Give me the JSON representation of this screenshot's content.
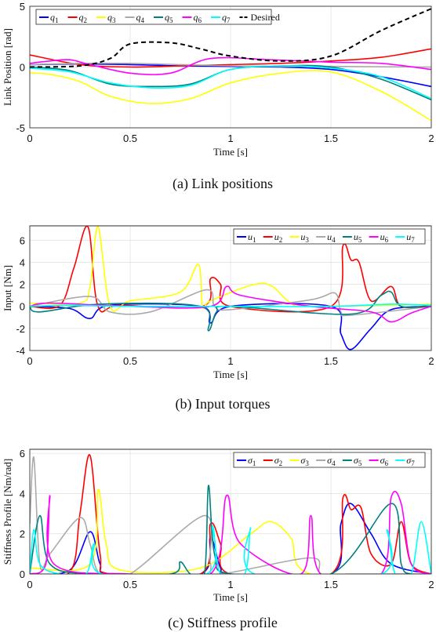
{
  "charts": [
    {
      "type": "line",
      "id": "a",
      "ylabel": "Link Position [rad]",
      "xlabel": "Time [s]",
      "caption": "(a)  Link positions",
      "xlim": [
        0,
        2
      ],
      "ylim": [
        -5,
        5
      ],
      "xticks": [
        "0",
        "0.5",
        "1",
        "1.5",
        "2"
      ],
      "yticks": [
        "5",
        "0",
        "-5"
      ],
      "ytick_values": [
        5,
        0,
        -5
      ],
      "grid": true,
      "legend_position": "top-center",
      "desired_label": "Desired",
      "series": [
        {
          "name": "q1",
          "color": "#0000ff",
          "x": [
            0,
            0.25,
            0.5,
            0.75,
            1,
            1.25,
            1.5,
            1.75,
            2
          ],
          "y": [
            0.2,
            0.25,
            0.2,
            0.1,
            0.05,
            0,
            -0.2,
            -0.8,
            -1.6
          ]
        },
        {
          "name": "q2",
          "color": "#ff0000",
          "x": [
            0,
            0.25,
            0.5,
            0.75,
            1,
            1.25,
            1.5,
            1.75,
            2
          ],
          "y": [
            1.0,
            0.2,
            0.0,
            0.1,
            0.2,
            0.3,
            0.5,
            0.8,
            1.5
          ]
        },
        {
          "name": "q3",
          "color": "#ffff00",
          "x": [
            0,
            0.1,
            0.25,
            0.4,
            0.6,
            0.8,
            1,
            1.25,
            1.5,
            1.75,
            2
          ],
          "y": [
            -0.5,
            -0.6,
            -1.2,
            -2.4,
            -3.0,
            -2.6,
            -1.3,
            -0.5,
            -0.4,
            -2.0,
            -4.4
          ]
        },
        {
          "name": "q4",
          "color": "#aaaaaa",
          "x": [
            0,
            0.25,
            0.5,
            0.75,
            1,
            1.25,
            1.5,
            1.75,
            2
          ],
          "y": [
            0.2,
            0.3,
            0.3,
            0.2,
            0.1,
            0.05,
            0.05,
            0.02,
            0
          ]
        },
        {
          "name": "q5",
          "color": "#008080",
          "x": [
            0,
            0.2,
            0.4,
            0.6,
            0.8,
            1,
            1.25,
            1.5,
            1.75,
            2
          ],
          "y": [
            0,
            -0.3,
            -1.4,
            -1.6,
            -1.4,
            -0.2,
            0.1,
            0,
            -1.0,
            -2.7
          ]
        },
        {
          "name": "q6",
          "color": "#ff00ff",
          "x": [
            0,
            0.1,
            0.2,
            0.3,
            0.5,
            0.7,
            0.9,
            1.2,
            1.5,
            1.75,
            2
          ],
          "y": [
            0.3,
            0.5,
            0.6,
            0.2,
            -0.5,
            -0.5,
            0.7,
            0.6,
            0.4,
            0.3,
            -0.2
          ]
        },
        {
          "name": "q7",
          "color": "#00ffff",
          "x": [
            0,
            0.2,
            0.4,
            0.6,
            0.8,
            1,
            1.25,
            1.5,
            1.75,
            2
          ],
          "y": [
            -0.1,
            -0.4,
            -1.3,
            -1.7,
            -1.5,
            -0.2,
            0.1,
            -0.1,
            -0.8,
            -2.6
          ]
        },
        {
          "name": "Desired",
          "color": "#000000",
          "dashed": true,
          "x": [
            0,
            0.25,
            0.4,
            0.5,
            0.7,
            0.85,
            1,
            1.25,
            1.5,
            1.75,
            2
          ],
          "y": [
            0,
            0.1,
            0.7,
            1.9,
            2.0,
            1.5,
            0.9,
            0.5,
            0.9,
            3.0,
            4.8
          ]
        }
      ]
    },
    {
      "type": "line",
      "id": "b",
      "ylabel": "Input [Nm]",
      "xlabel": "Time [s]",
      "caption": "(b)  Input torques",
      "xlim": [
        0,
        2
      ],
      "ylim": [
        -4,
        7.3
      ],
      "xticks": [
        "0",
        "0.5",
        "1",
        "1.5",
        "2"
      ],
      "yticks": [
        "6",
        "4",
        "2",
        "0",
        "-2",
        "-4"
      ],
      "ytick_values": [
        6,
        4,
        2,
        0,
        -2,
        -4
      ],
      "grid": true,
      "legend_position": "top-right",
      "series": [
        {
          "name": "u1",
          "color": "#0000ff",
          "x": [
            0,
            0.2,
            0.3,
            0.4,
            0.85,
            0.9,
            1.0,
            1.5,
            1.55,
            1.6,
            1.7,
            1.8,
            2
          ],
          "y": [
            0,
            -0.2,
            -1.1,
            0.1,
            0,
            -1.5,
            0,
            0,
            -2.5,
            -3.9,
            -2.0,
            -0.3,
            0
          ]
        },
        {
          "name": "u2",
          "color": "#ff0000",
          "x": [
            0,
            0.15,
            0.22,
            0.29,
            0.34,
            0.45,
            0.86,
            0.9,
            0.95,
            1.0,
            1.5,
            1.56,
            1.6,
            1.64,
            1.7,
            1.8,
            1.85,
            2
          ],
          "y": [
            0,
            0.1,
            3.5,
            7.2,
            0,
            0.1,
            0,
            2.5,
            2.0,
            0,
            0,
            5.5,
            4.2,
            4.0,
            0.5,
            1.8,
            0,
            0.1
          ]
        },
        {
          "name": "u3",
          "color": "#ffff00",
          "x": [
            0,
            0.25,
            0.3,
            0.34,
            0.4,
            0.5,
            0.75,
            0.84,
            0.86,
            0.9,
            1.1,
            1.2,
            1.3,
            1.4,
            2
          ],
          "y": [
            0.3,
            0.3,
            1.8,
            7.2,
            0,
            0.5,
            1.3,
            3.8,
            0,
            0.5,
            1.9,
            1.9,
            0.3,
            0,
            0.2
          ]
        },
        {
          "name": "u4",
          "color": "#aaaaaa",
          "x": [
            0,
            0.3,
            0.4,
            0.6,
            0.88,
            0.92,
            1.0,
            1.4,
            1.52,
            1.55,
            1.6,
            2
          ],
          "y": [
            0,
            0.9,
            -0.5,
            -0.5,
            1.5,
            0,
            -0.3,
            0.6,
            1.2,
            -0.5,
            -0.8,
            0
          ]
        },
        {
          "name": "u5",
          "color": "#008080",
          "x": [
            0,
            0.05,
            0.35,
            0.85,
            0.89,
            0.93,
            1.0,
            1.6,
            1.75,
            1.8,
            1.85,
            2
          ],
          "y": [
            0,
            -0.5,
            0.2,
            0,
            -2.2,
            -0.5,
            0,
            -0.7,
            1.0,
            1.3,
            0,
            0
          ]
        },
        {
          "name": "u6",
          "color": "#ff00ff",
          "x": [
            0,
            0.1,
            0.5,
            0.9,
            0.98,
            1.05,
            1.4,
            1.7,
            1.8,
            1.9,
            2
          ],
          "y": [
            0,
            0.3,
            0,
            0,
            1.8,
            1.0,
            0,
            -0.5,
            -1.4,
            -0.6,
            0
          ]
        },
        {
          "name": "u7",
          "color": "#00ffff",
          "x": [
            0,
            0.2,
            0.5,
            1.0,
            1.5,
            1.8,
            2
          ],
          "y": [
            0,
            0.1,
            0,
            0,
            0,
            0.2,
            0.1
          ]
        }
      ]
    },
    {
      "type": "line",
      "id": "c",
      "ylabel": "Stiffness Profile [Nm/rad]",
      "xlabel": "Time [s]",
      "caption": "(c)  Stiffness profile",
      "xlim": [
        0,
        2
      ],
      "ylim": [
        0,
        6.2
      ],
      "xticks": [
        "0",
        "0.5",
        "1",
        "1.5",
        "2"
      ],
      "yticks": [
        "6",
        "4",
        "2",
        "0"
      ],
      "ytick_values": [
        6,
        4,
        2,
        0
      ],
      "grid": true,
      "legend_position": "top-right",
      "series": [
        {
          "name": "σ1",
          "color": "#0000ff",
          "x": [
            0,
            0.2,
            0.3,
            0.35,
            0.4,
            0.85,
            0.9,
            0.95,
            1.0,
            1.5,
            1.55,
            1.6,
            1.7,
            1.8,
            2
          ],
          "y": [
            0,
            0.2,
            2.1,
            0.5,
            0,
            0,
            1.8,
            0.3,
            0,
            0,
            2.5,
            3.5,
            2.0,
            0.5,
            0
          ]
        },
        {
          "name": "σ2",
          "color": "#ff0000",
          "x": [
            0,
            0.2,
            0.25,
            0.3,
            0.35,
            0.4,
            0.85,
            0.9,
            0.95,
            1.0,
            1.5,
            1.56,
            1.6,
            1.65,
            1.7,
            1.8,
            1.85,
            1.9,
            2
          ],
          "y": [
            0,
            0.1,
            3.0,
            5.9,
            1.0,
            0,
            0,
            2.5,
            1.5,
            0,
            0,
            3.8,
            3.2,
            3.3,
            1.0,
            0.5,
            2.6,
            0.5,
            0
          ]
        },
        {
          "name": "σ3",
          "color": "#ffff00",
          "x": [
            0,
            0.3,
            0.34,
            0.38,
            0.45,
            0.85,
            1.1,
            1.2,
            1.3,
            1.4,
            2
          ],
          "y": [
            0.3,
            0.5,
            4.2,
            1.5,
            0.2,
            0.3,
            2.0,
            2.6,
            1.8,
            0,
            0
          ]
        },
        {
          "name": "σ4",
          "color": "#aaaaaa",
          "x": [
            0,
            0.02,
            0.05,
            0.1,
            0.25,
            0.3,
            0.35,
            0.5,
            0.87,
            0.9,
            0.95,
            1.4,
            1.45,
            1.6,
            2
          ],
          "y": [
            2.5,
            5.8,
            0.5,
            1.0,
            2.8,
            1.5,
            0,
            0,
            2.9,
            0.5,
            0,
            0.8,
            0,
            0,
            0
          ]
        },
        {
          "name": "σ5",
          "color": "#008080",
          "x": [
            0,
            0.05,
            0.1,
            0.3,
            0.7,
            0.75,
            0.8,
            0.87,
            0.89,
            0.92,
            1.0,
            1.5,
            1.8,
            1.85,
            1.9,
            2
          ],
          "y": [
            0,
            2.9,
            0.5,
            0,
            0,
            0.6,
            0,
            0,
            4.4,
            1.0,
            0,
            0,
            3.5,
            0.5,
            0,
            0
          ]
        },
        {
          "name": "σ6",
          "color": "#ff00ff",
          "x": [
            0,
            0.08,
            0.1,
            0.12,
            0.5,
            0.9,
            0.98,
            1.05,
            1.35,
            1.4,
            1.45,
            1.75,
            1.8,
            1.85,
            1.9,
            2
          ],
          "y": [
            0,
            0.5,
            3.9,
            0.5,
            0,
            0,
            3.9,
            1.5,
            0,
            2.9,
            0,
            0,
            3.8,
            3.5,
            0.5,
            0
          ]
        },
        {
          "name": "σ7",
          "color": "#00ffff",
          "x": [
            0,
            0.02,
            0.05,
            0.15,
            0.28,
            0.32,
            0.36,
            0.88,
            0.91,
            0.95,
            1.07,
            1.1,
            1.12,
            1.75,
            1.78,
            1.82,
            1.9,
            1.95,
            2
          ],
          "y": [
            0,
            2.2,
            0.5,
            0,
            0,
            1.5,
            0,
            0,
            2.4,
            0,
            0,
            2.3,
            0,
            0,
            2.2,
            0,
            0,
            2.6,
            0
          ]
        }
      ]
    }
  ]
}
